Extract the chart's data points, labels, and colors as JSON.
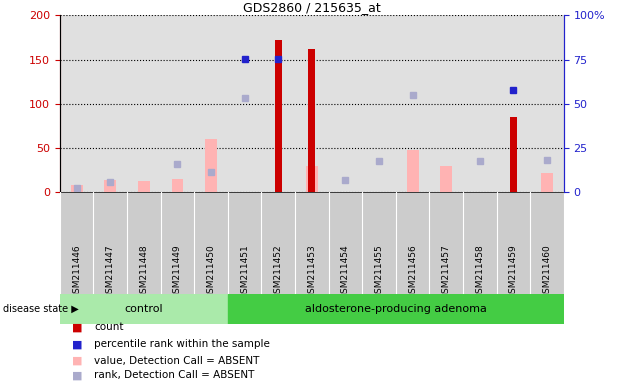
{
  "title": "GDS2860 / 215635_at",
  "samples": [
    "GSM211446",
    "GSM211447",
    "GSM211448",
    "GSM211449",
    "GSM211450",
    "GSM211451",
    "GSM211452",
    "GSM211453",
    "GSM211454",
    "GSM211455",
    "GSM211456",
    "GSM211457",
    "GSM211458",
    "GSM211459",
    "GSM211460"
  ],
  "count_values": [
    0,
    0,
    0,
    0,
    0,
    0,
    172,
    162,
    0,
    0,
    0,
    0,
    0,
    85,
    0
  ],
  "percentile_values": [
    null,
    null,
    null,
    null,
    null,
    151,
    151,
    null,
    null,
    null,
    null,
    null,
    null,
    116,
    null
  ],
  "value_absent": [
    8,
    14,
    12,
    15,
    60,
    null,
    null,
    30,
    null,
    null,
    47,
    30,
    null,
    null,
    22
  ],
  "rank_absent": [
    5,
    11,
    null,
    32,
    23,
    106,
    null,
    null,
    14,
    35,
    110,
    null,
    35,
    null,
    36
  ],
  "ylim_left": [
    0,
    200
  ],
  "ylim_right": [
    0,
    100
  ],
  "left_ticks": [
    0,
    50,
    100,
    150,
    200
  ],
  "right_ticks": [
    0,
    25,
    50,
    75,
    100
  ],
  "control_count": 5,
  "adenoma_count": 10,
  "control_label": "control",
  "adenoma_label": "aldosterone-producing adenoma",
  "disease_state_label": "disease state",
  "count_color": "#cc0000",
  "percentile_color": "#2222cc",
  "value_absent_color": "#ffb3b3",
  "rank_absent_color": "#aaaacc",
  "control_bg": "#aaeaaa",
  "adenoma_bg": "#44cc44",
  "plot_bg": "#e0e0e0",
  "label_bg": "#cccccc",
  "left_axis_color": "#cc0000",
  "right_axis_color": "#2222cc",
  "legend_labels": [
    "count",
    "percentile rank within the sample",
    "value, Detection Call = ABSENT",
    "rank, Detection Call = ABSENT"
  ],
  "legend_colors": [
    "#cc0000",
    "#2222cc",
    "#ffb3b3",
    "#aaaacc"
  ]
}
